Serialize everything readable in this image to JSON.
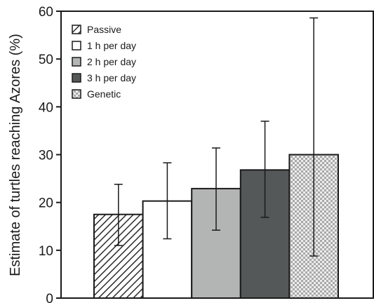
{
  "chart_data": {
    "type": "bar",
    "title": "",
    "xlabel": "",
    "ylabel": "Estimate of turtles reaching Azores (%)",
    "ylim": [
      0,
      60
    ],
    "yticks": [
      0,
      10,
      20,
      30,
      40,
      50,
      60
    ],
    "grid": false,
    "legend_position": "top-left",
    "series": [
      {
        "name": "Passive",
        "value": 17.5,
        "err_low": 11,
        "err_high": 23.8,
        "fill": "hatch",
        "color": "#2b2b2b"
      },
      {
        "name": "1 h per day",
        "value": 20.3,
        "err_low": 12.4,
        "err_high": 28.3,
        "fill": "solid",
        "color": "#ffffff"
      },
      {
        "name": "2 h per day",
        "value": 22.9,
        "err_low": 14.2,
        "err_high": 31.4,
        "fill": "solid",
        "color": "#b3b5b4"
      },
      {
        "name": "3 h per day",
        "value": 26.8,
        "err_low": 16.9,
        "err_high": 37.0,
        "fill": "solid",
        "color": "#555859"
      },
      {
        "name": "Genetic",
        "value": 30.0,
        "err_low": 8.8,
        "err_high": 58.6,
        "fill": "checker",
        "color": "#b8b8b8"
      }
    ]
  }
}
